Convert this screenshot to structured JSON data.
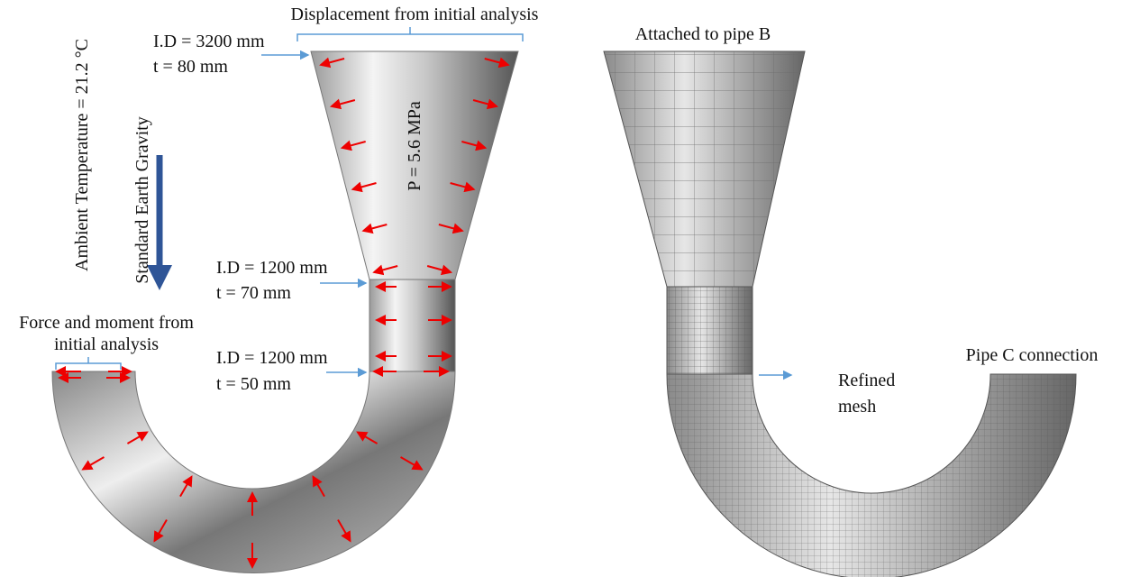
{
  "annotations": {
    "displacement": "Displacement from initial analysis",
    "top_id": "I.D = 3200 mm",
    "top_t": "t = 80 mm",
    "temperature": "Ambient Temperature = 21.2 °C",
    "gravity": "Standard Earth Gravity",
    "pressure": "P = 5.6 MPa",
    "mid_id": "I.D = 1200 mm",
    "mid_t": "t = 70 mm",
    "force_line1": "Force and moment from",
    "force_line2": "initial analysis",
    "low_id": "I.D = 1200 mm",
    "low_t": "t = 50 mm",
    "attached": "Attached to pipe B",
    "pipe_c": "Pipe C connection",
    "refined_line1": "Refined",
    "refined_line2": "mesh"
  }
}
